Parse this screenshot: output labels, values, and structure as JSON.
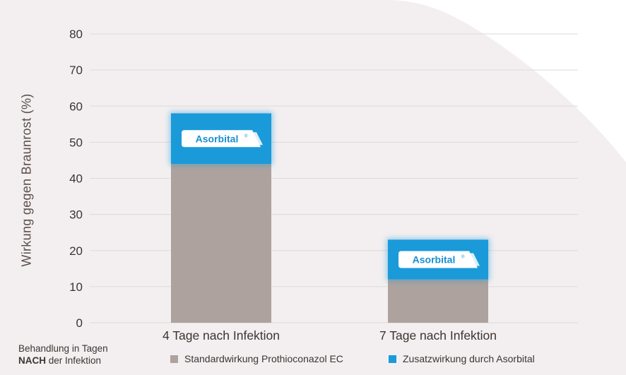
{
  "chart_data": {
    "type": "bar",
    "stacked": true,
    "categories": [
      "4 Tage nach Infektion",
      "7 Tage nach Infektion"
    ],
    "series": [
      {
        "name": "Standardwirkung Prothioconazol EC",
        "values": [
          44,
          12
        ],
        "color": "#ada29e"
      },
      {
        "name": "Zusatzwirkung durch Asorbital",
        "values": [
          14,
          11
        ],
        "color": "#1a9ad9"
      }
    ],
    "ylabel": "Wirkung gegen Braunrost (%)",
    "yticks": [
      0,
      10,
      20,
      30,
      40,
      50,
      60,
      70,
      80
    ],
    "ylim": [
      0,
      80
    ],
    "grid": true,
    "bar_badge_text": "Asorbital",
    "legend_position": "bottom"
  },
  "footnote": {
    "line1": "Behandlung in Tagen",
    "line2_bold": "NACH",
    "line2_rest": " der Infektion"
  },
  "colors": {
    "background_shape": "#f3eff0",
    "grid": "#dedad8",
    "text": "#3d3432"
  }
}
